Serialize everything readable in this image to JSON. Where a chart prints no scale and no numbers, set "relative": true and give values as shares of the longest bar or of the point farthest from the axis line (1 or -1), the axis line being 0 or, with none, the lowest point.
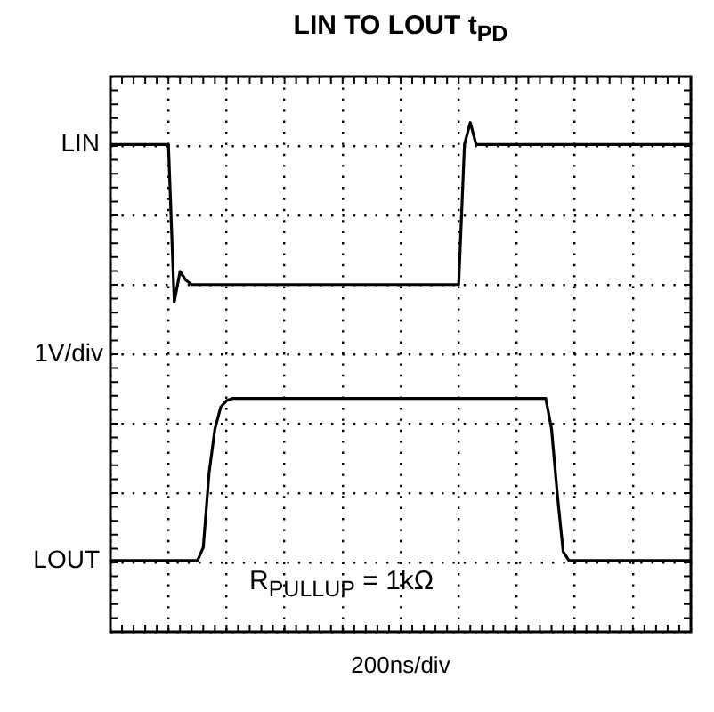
{
  "chart_data": {
    "type": "line",
    "title": "LIN TO LOUT t$_{PD}$",
    "xlabel": "200ns/div",
    "ylabel": "1V/div",
    "relative": true,
    "grid": true,
    "legend": "left",
    "marker": "none",
    "line_style": "solid",
    "annotations": [
      "R$_{PULLUP}$ = 1kΩ"
    ],
    "categories": [
      null,
      null,
      null,
      null,
      null,
      null,
      null,
      null,
      null,
      null,
      null,
      null,
      null,
      null,
      null,
      null,
      null,
      null,
      null,
      null,
      null,
      null,
      null,
      null,
      null,
      null,
      null,
      null,
      null,
      null,
      null,
      null,
      null,
      null,
      null,
      null,
      null,
      null,
      null,
      null,
      null,
      null,
      null,
      null,
      null,
      null,
      null,
      null,
      null,
      null,
      null,
      null,
      null,
      null,
      null,
      null,
      null,
      null,
      null,
      null,
      null,
      null,
      null,
      null,
      null,
      null,
      null,
      null,
      null,
      null,
      null,
      null,
      null,
      null,
      null,
      null,
      null,
      null,
      null,
      null,
      null,
      null,
      null,
      null,
      null,
      null,
      null,
      null,
      null,
      null,
      null,
      null,
      null,
      null,
      null,
      null,
      null,
      null,
      null,
      null,
      null
    ],
    "series": [
      {
        "name": "LIN",
        "color": "#000000",
        "values": [
          0.95,
          0.95,
          0.95,
          0.95,
          0.95,
          0.95,
          0.95,
          0.95,
          0.95,
          0.95,
          0.95,
          0.59,
          0.66,
          0.64,
          0.63,
          0.63,
          0.63,
          0.63,
          0.63,
          0.63,
          0.63,
          0.63,
          0.63,
          0.63,
          0.63,
          0.63,
          0.63,
          0.63,
          0.63,
          0.63,
          0.63,
          0.63,
          0.63,
          0.63,
          0.63,
          0.63,
          0.63,
          0.63,
          0.63,
          0.63,
          0.63,
          0.63,
          0.63,
          0.63,
          0.63,
          0.63,
          0.63,
          0.63,
          0.63,
          0.63,
          0.63,
          0.63,
          0.63,
          0.63,
          0.63,
          0.63,
          0.63,
          0.63,
          0.63,
          0.63,
          0.63,
          0.95,
          1,
          0.95,
          0.95,
          0.95,
          0.95,
          0.95,
          0.95,
          0.95,
          0.95,
          0.95,
          0.95,
          0.95,
          0.95,
          0.95,
          0.95,
          0.95,
          0.95,
          0.95,
          0.95,
          0.95,
          0.95,
          0.95,
          0.95,
          0.95,
          0.95,
          0.95,
          0.95,
          0.95,
          0.95,
          0.95,
          0.95,
          0.95,
          0.95,
          0.95,
          0.95,
          0.95,
          0.95,
          0.95,
          0.95
        ]
      },
      {
        "name": "LOUT",
        "color": "#000000",
        "values": [
          0,
          0,
          0,
          0,
          0,
          0,
          0,
          0,
          0,
          0,
          0,
          0,
          0,
          0,
          0,
          0,
          0.03,
          0.2,
          0.3,
          0.35,
          0.365,
          0.37,
          0.37,
          0.37,
          0.37,
          0.37,
          0.37,
          0.37,
          0.37,
          0.37,
          0.37,
          0.37,
          0.37,
          0.37,
          0.37,
          0.37,
          0.37,
          0.37,
          0.37,
          0.37,
          0.37,
          0.37,
          0.37,
          0.37,
          0.37,
          0.37,
          0.37,
          0.37,
          0.37,
          0.37,
          0.37,
          0.37,
          0.37,
          0.37,
          0.37,
          0.37,
          0.37,
          0.37,
          0.37,
          0.37,
          0.37,
          0.37,
          0.37,
          0.37,
          0.37,
          0.37,
          0.37,
          0.37,
          0.37,
          0.37,
          0.37,
          0.37,
          0.37,
          0.37,
          0.37,
          0.37,
          0.3,
          0.15,
          0.02,
          0,
          0,
          0,
          0,
          0,
          0,
          0,
          0,
          0,
          0,
          0,
          0,
          0,
          0,
          0,
          0,
          0,
          0,
          0,
          0,
          0,
          0
        ]
      }
    ]
  }
}
